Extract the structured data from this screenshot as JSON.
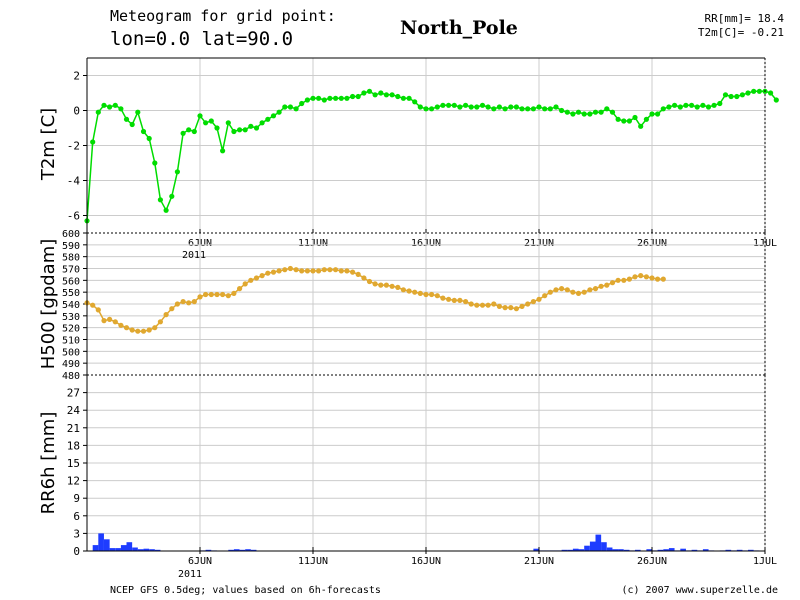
{
  "header": {
    "title_line1": "Meteogram for grid point:",
    "title_line2": "lon=0.0  lat=90.0",
    "location": "North_Pole",
    "summary_rr": "RR[mm]= 18.4",
    "summary_t2m": "T2m[C]= -0.21"
  },
  "footer": {
    "source": "NCEP GFS 0.5deg; values based on 6h-forecasts",
    "copyright": "(c) 2007 www.superzelle.de"
  },
  "colors": {
    "t2m": "#00dd00",
    "h500": "#e0a830",
    "rr6h": "#1e3cff",
    "grid": "#cccccc",
    "axis": "#000000"
  },
  "x_axis": {
    "ticks": [
      {
        "day": 6,
        "label": "6JUN"
      },
      {
        "day": 11,
        "label": "11JUN"
      },
      {
        "day": 16,
        "label": "16JUN"
      },
      {
        "day": 21,
        "label": "21JUN"
      },
      {
        "day": 26,
        "label": "26JUN"
      },
      {
        "day": 31,
        "label": "1JUL"
      }
    ],
    "year_label": "2011",
    "start": "2011-06-01T00",
    "end": "2011-07-01T00"
  },
  "chart_data": [
    {
      "type": "line",
      "ylabel": "T2m [C]",
      "ylim": [
        -7,
        3
      ],
      "yticks": [
        -6,
        -4,
        -2,
        0,
        2
      ],
      "grid": true,
      "x_step_hours": 6,
      "x_start": "2011-06-01T00",
      "series": [
        {
          "values": [
            -6.3,
            -1.8,
            -0.1,
            0.3,
            0.2,
            0.3,
            0.1,
            -0.5,
            -0.8,
            -0.1,
            -1.2,
            -1.6,
            -3,
            -5.1,
            -5.7,
            -4.9,
            -3.5,
            -1.3,
            -1.1,
            -1.2,
            -0.3,
            -0.7,
            -0.6,
            -1,
            -2.3,
            -0.7,
            -1.2,
            -1.1,
            -1.1,
            -0.9,
            -1,
            -0.7,
            -0.5,
            -0.3,
            -0.1,
            0.2,
            0.2,
            0.1,
            0.4,
            0.6,
            0.7,
            0.7,
            0.6,
            0.7,
            0.7,
            0.7,
            0.7,
            0.8,
            0.8,
            1,
            1.1,
            0.9,
            1,
            0.9,
            0.9,
            0.8,
            0.7,
            0.7,
            0.5,
            0.2,
            0.1,
            0.1,
            0.2,
            0.3,
            0.3,
            0.3,
            0.2,
            0.3,
            0.2,
            0.2,
            0.3,
            0.2,
            0.1,
            0.2,
            0.1,
            0.2,
            0.2,
            0.1,
            0.1,
            0.1,
            0.2,
            0.1,
            0.1,
            0.2,
            0,
            -0.1,
            -0.2,
            -0.1,
            -0.2,
            -0.2,
            -0.1,
            -0.1,
            0.1,
            -0.1,
            -0.5,
            -0.6,
            -0.6,
            -0.4,
            -0.9,
            -0.5,
            -0.2,
            -0.2,
            0.1,
            0.2,
            0.3,
            0.2,
            0.3,
            0.3,
            0.2,
            0.3,
            0.2,
            0.3,
            0.4,
            0.9,
            0.8,
            0.8,
            0.9,
            1,
            1.1,
            1.1,
            1.1,
            1,
            0.6
          ]
        }
      ]
    },
    {
      "type": "line",
      "ylabel": "H500 [gpdam]",
      "ylim": [
        480,
        600
      ],
      "yticks": [
        480,
        490,
        500,
        510,
        520,
        530,
        540,
        550,
        560,
        570,
        580,
        590,
        600
      ],
      "grid": true,
      "x_step_hours": 6,
      "x_start": "2011-06-01T00",
      "series": [
        {
          "values": [
            541,
            539,
            535,
            526,
            527,
            525,
            522,
            520,
            518,
            517,
            517,
            518,
            520,
            525,
            531,
            536,
            540,
            542,
            541,
            542,
            546,
            548,
            548,
            548,
            548,
            547,
            549,
            553,
            557,
            560,
            562,
            564,
            566,
            567,
            568,
            569,
            570,
            569,
            568,
            568,
            568,
            568,
            569,
            569,
            569,
            568,
            568,
            567,
            565,
            562,
            559,
            557,
            556,
            556,
            555,
            554,
            552,
            551,
            550,
            549,
            548,
            548,
            547,
            545,
            544,
            543,
            543,
            542,
            540,
            539,
            539,
            539,
            540,
            538,
            537,
            537,
            536,
            538,
            540,
            542,
            544,
            547,
            550,
            552,
            553,
            552,
            550,
            549,
            550,
            552,
            553,
            555,
            556,
            558,
            560,
            560,
            561,
            563,
            564,
            563,
            562,
            561,
            561
          ]
        }
      ]
    },
    {
      "type": "bar",
      "ylabel": "RR6h [mm]",
      "ylim": [
        0,
        30
      ],
      "yticks": [
        0,
        3,
        6,
        9,
        12,
        15,
        18,
        21,
        24,
        27
      ],
      "grid": true,
      "x_step_hours": 6,
      "x_start": "2011-06-01T00",
      "series": [
        {
          "values": [
            0,
            1,
            3,
            2,
            0.5,
            0.5,
            1,
            1.5,
            0.6,
            0.3,
            0.4,
            0.3,
            0.2,
            0,
            0,
            0,
            0,
            0,
            0,
            0,
            0.1,
            0.2,
            0.1,
            0,
            0,
            0.2,
            0.3,
            0.2,
            0.3,
            0.2,
            0,
            0,
            0,
            0,
            0,
            0,
            0,
            0,
            0,
            0,
            0,
            0,
            0,
            0,
            0,
            0,
            0,
            0,
            0,
            0,
            0,
            0,
            0,
            0,
            0,
            0,
            0,
            0,
            0,
            0,
            0,
            0,
            0,
            0,
            0,
            0,
            0,
            0,
            0,
            0,
            0,
            0,
            0,
            0,
            0,
            0,
            0,
            0,
            0,
            0.4,
            0.1,
            0.1,
            0.1,
            0.1,
            0.2,
            0.2,
            0.4,
            0.3,
            0.9,
            1.6,
            2.8,
            1.5,
            0.6,
            0.3,
            0.3,
            0.2,
            0.1,
            0.2,
            0,
            0.3,
            0.1,
            0.2,
            0.3,
            0.5,
            0.1,
            0.4,
            0.1,
            0.2,
            0.1,
            0.3,
            0.1,
            0,
            0.1,
            0.2,
            0.1,
            0.2,
            0.1,
            0.2,
            0.1
          ]
        }
      ]
    }
  ]
}
